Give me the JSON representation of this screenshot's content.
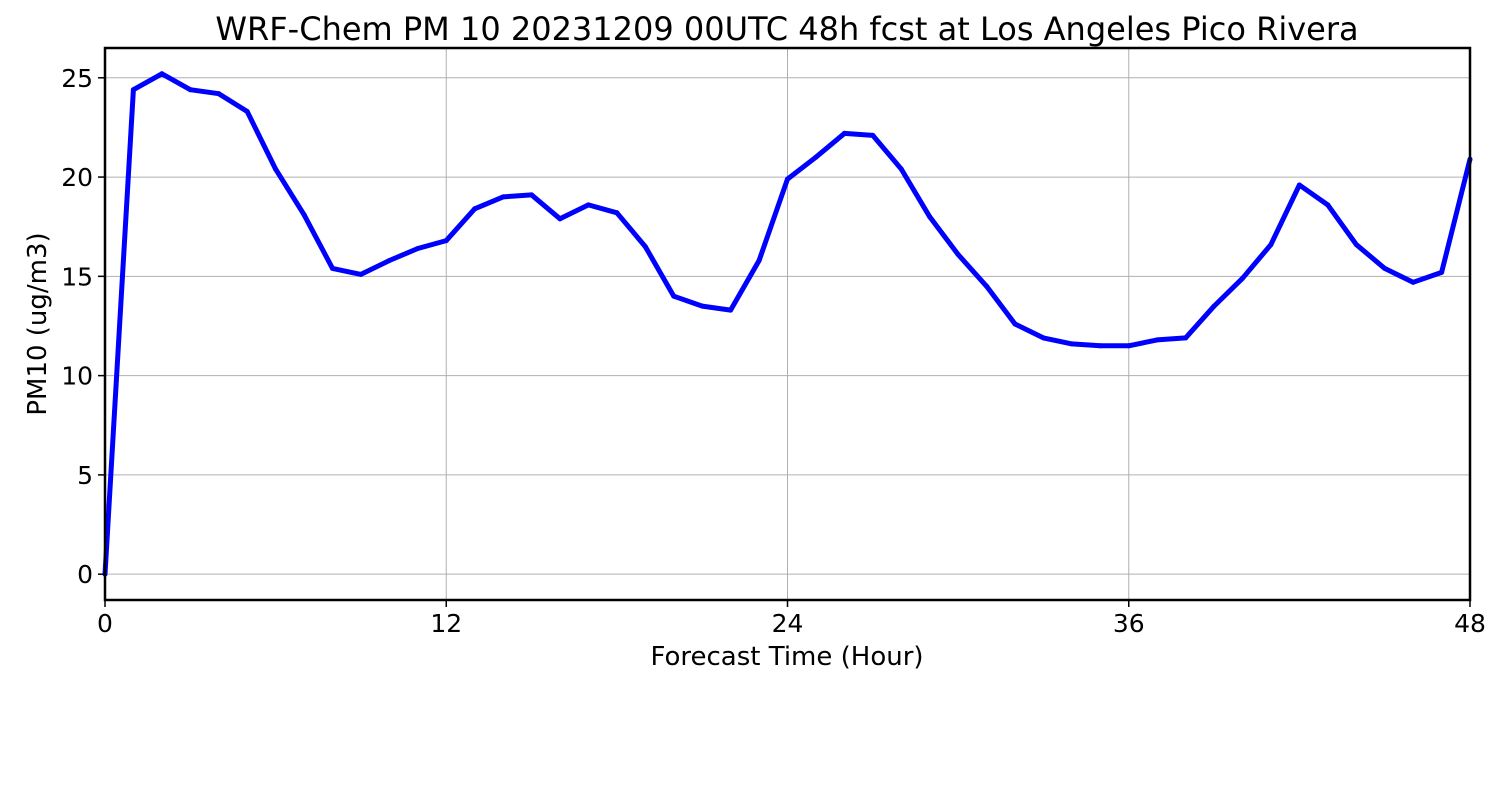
{
  "chart_data": {
    "type": "line",
    "title": "WRF-Chem PM 10  20231209 00UTC 48h fcst at Los Angeles Pico Rivera",
    "xlabel": "Forecast Time (Hour)",
    "ylabel": "PM10  (ug/m3)",
    "xlim": [
      0,
      48
    ],
    "ylim": [
      -1.3,
      26.5
    ],
    "xticks": [
      0,
      12,
      24,
      36,
      48
    ],
    "yticks": [
      0,
      5,
      10,
      15,
      20,
      25
    ],
    "grid": true,
    "series": [
      {
        "color": "#0000ff",
        "x": [
          0,
          1,
          2,
          3,
          4,
          5,
          6,
          7,
          8,
          9,
          10,
          11,
          12,
          13,
          14,
          15,
          16,
          17,
          18,
          19,
          20,
          21,
          22,
          23,
          24,
          25,
          26,
          27,
          28,
          29,
          30,
          31,
          32,
          33,
          34,
          35,
          36,
          37,
          38,
          39,
          40,
          41,
          42,
          43,
          44,
          45,
          46,
          47,
          48
        ],
        "y": [
          0,
          24.4,
          25.2,
          24.4,
          24.2,
          23.3,
          20.4,
          18.1,
          15.4,
          15.1,
          15.8,
          16.4,
          16.8,
          18.4,
          19.0,
          19.1,
          17.9,
          18.6,
          18.2,
          16.5,
          14.0,
          13.5,
          13.3,
          15.8,
          19.9,
          21.0,
          22.2,
          22.1,
          20.4,
          18.0,
          16.1,
          14.5,
          12.6,
          11.9,
          11.6,
          11.5,
          11.5,
          11.8,
          11.9,
          13.5,
          14.9,
          16.6,
          19.6,
          18.6,
          16.6,
          15.4,
          14.7,
          15.2,
          20.9
        ]
      }
    ]
  }
}
